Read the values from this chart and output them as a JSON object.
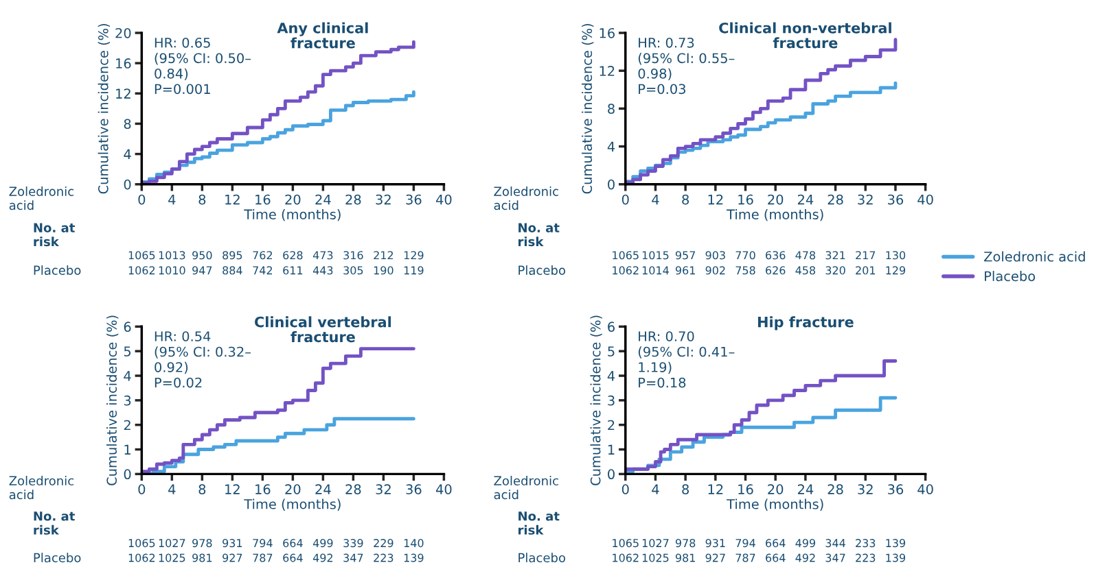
{
  "chart_data": [
    {
      "type": "step",
      "title": "Any clinical\nfracture",
      "xlabel": "Time (months)",
      "ylabel": "Cumulative incidence (%)",
      "xlim": [
        0,
        40
      ],
      "xticks": [
        0,
        4,
        8,
        12,
        16,
        20,
        24,
        28,
        32,
        36,
        40
      ],
      "ylim": [
        0,
        20
      ],
      "yticks": [
        0,
        4,
        8,
        12,
        16,
        20
      ],
      "grid": false,
      "legend": false,
      "annotations": [
        "HR: 0.65\n(95% CI: 0.50–\n0.84)\nP=0.001",
        "Zoledronic\nacid",
        "No. at\nrisk",
        "1065 1013 950 895 762 628 473 316 212 129",
        "Placebo",
        "1062 1010 947 884 742 611 443 305 190 119"
      ],
      "series": [
        {
          "color": "#4aa3df",
          "x": [
            0,
            1,
            2,
            3,
            4,
            5,
            6,
            7,
            8,
            9,
            10,
            12,
            14,
            16,
            17,
            18,
            19,
            20,
            22,
            24,
            25,
            27,
            28,
            30,
            33,
            35,
            36
          ],
          "values": [
            0.3,
            0.7,
            1.3,
            1.6,
            2.0,
            2.5,
            2.9,
            3.4,
            3.6,
            4.1,
            4.5,
            5.2,
            5.5,
            6.0,
            6.3,
            6.8,
            7.2,
            7.7,
            7.9,
            8.4,
            9.8,
            10.4,
            10.8,
            11.0,
            11.2,
            11.7,
            12.2
          ]
        },
        {
          "color": "#7352c4",
          "x": [
            0,
            1,
            2,
            3,
            4,
            5,
            6,
            7,
            8,
            9,
            10,
            12,
            14,
            16,
            17,
            18,
            19,
            21,
            22,
            23,
            24,
            25,
            27,
            28,
            29,
            31,
            33,
            34,
            36
          ],
          "values": [
            0.2,
            0.4,
            0.9,
            1.4,
            2.0,
            3.0,
            4.0,
            4.6,
            5.0,
            5.5,
            6.0,
            6.7,
            7.5,
            8.5,
            9.2,
            10.0,
            11.0,
            11.5,
            12.2,
            13.0,
            14.5,
            15.0,
            15.5,
            16.0,
            17.0,
            17.5,
            17.8,
            18.1,
            18.8
          ]
        }
      ]
    },
    {
      "type": "step",
      "title": "Clinical non-vertebral\nfracture",
      "xlabel": "Time (months)",
      "ylabel": "Cumulative incidence (%)",
      "xlim": [
        0,
        40
      ],
      "xticks": [
        0,
        4,
        8,
        12,
        16,
        20,
        24,
        28,
        32,
        36,
        40
      ],
      "ylim": [
        0,
        16
      ],
      "yticks": [
        0,
        4,
        8,
        12,
        16
      ],
      "grid": false,
      "legend": "right",
      "annotations": [
        "HR: 0.73\n(95% CI: 0.55–\n0.98)\nP=0.03",
        "Zoledronic\nacid",
        "No. at\nrisk",
        "1065 1015 957 903 770 636 478 321 217 130",
        "Placebo",
        "1062 1014 961 902 758 626 458 320 201 129"
      ],
      "series": [
        {
          "name": "Zoledronic acid",
          "color": "#4aa3df",
          "x": [
            0,
            1,
            2,
            3,
            4,
            5,
            6,
            7,
            8,
            9,
            10,
            11,
            13,
            14,
            15,
            16,
            18,
            19,
            20,
            22,
            24,
            25,
            27,
            28,
            30,
            34,
            36
          ],
          "values": [
            0.3,
            0.8,
            1.4,
            1.7,
            2.0,
            2.2,
            2.8,
            3.4,
            3.6,
            3.8,
            4.1,
            4.5,
            4.7,
            5.0,
            5.2,
            5.8,
            6.1,
            6.5,
            6.8,
            7.1,
            7.5,
            8.5,
            8.8,
            9.3,
            9.7,
            10.2,
            10.7
          ]
        },
        {
          "name": "Placebo",
          "color": "#7352c4",
          "x": [
            0,
            1,
            2,
            3,
            4,
            5,
            6,
            7,
            8,
            9,
            10,
            12,
            13,
            14,
            15,
            16,
            17,
            18,
            19,
            21,
            22,
            24,
            26,
            27,
            28,
            30,
            32,
            34,
            36
          ],
          "values": [
            0.2,
            0.5,
            1.0,
            1.4,
            1.9,
            2.6,
            3.0,
            3.8,
            4.0,
            4.3,
            4.7,
            5.0,
            5.4,
            5.9,
            6.4,
            6.9,
            7.6,
            8.0,
            8.8,
            9.1,
            10.0,
            11.0,
            11.7,
            12.1,
            12.5,
            13.1,
            13.5,
            14.2,
            15.3
          ]
        }
      ]
    },
    {
      "type": "step",
      "title": "Clinical vertebral\nfracture",
      "xlabel": "Time (months)",
      "ylabel": "Cumulative incidence (%)",
      "xlim": [
        0,
        40
      ],
      "xticks": [
        0,
        4,
        8,
        12,
        16,
        20,
        24,
        28,
        32,
        36,
        40
      ],
      "ylim": [
        0,
        6
      ],
      "yticks": [
        0,
        1,
        2,
        3,
        4,
        5,
        6
      ],
      "grid": false,
      "legend": false,
      "annotations": [
        "HR: 0.54\n(95% CI: 0.32–\n0.92)\nP=0.02",
        "Zoledronic\nacid",
        "No. at\nrisk",
        "1065 1027 978 931 794 664 499 339 229 140",
        "Placebo",
        "1062 1025 981 927 787 664 492 347 223 139"
      ],
      "series": [
        {
          "color": "#4aa3df",
          "x": [
            0,
            1.5,
            3,
            4.5,
            5.5,
            7.5,
            9.5,
            11,
            12.5,
            18,
            19,
            21.5,
            24.5,
            25.5,
            36
          ],
          "values": [
            0.0,
            0.1,
            0.3,
            0.5,
            0.8,
            1.0,
            1.1,
            1.2,
            1.35,
            1.5,
            1.65,
            1.8,
            2.0,
            2.25,
            2.25
          ]
        },
        {
          "color": "#7352c4",
          "x": [
            0,
            1,
            2,
            3,
            4,
            5,
            5.5,
            7,
            8,
            9,
            10,
            11,
            13,
            15,
            18,
            19,
            20,
            22,
            23,
            24,
            25,
            27,
            29,
            36
          ],
          "values": [
            0.1,
            0.2,
            0.4,
            0.45,
            0.55,
            0.65,
            1.2,
            1.4,
            1.6,
            1.8,
            2.0,
            2.2,
            2.3,
            2.5,
            2.6,
            2.9,
            3.0,
            3.4,
            3.7,
            4.3,
            4.5,
            4.8,
            5.1,
            5.1
          ]
        }
      ]
    },
    {
      "type": "step",
      "title": "Hip fracture",
      "xlabel": "Time (months)",
      "ylabel": "Cumulative incidence (%)",
      "xlim": [
        0,
        40
      ],
      "xticks": [
        0,
        4,
        8,
        12,
        16,
        20,
        24,
        28,
        32,
        36,
        40
      ],
      "ylim": [
        0,
        6
      ],
      "yticks": [
        0,
        1,
        2,
        3,
        4,
        5,
        6
      ],
      "grid": false,
      "legend": false,
      "annotations": [
        "HR: 0.70\n(95% CI: 0.41–\n1.19)\nP=0.18",
        "Zoledronic\nacid",
        "No. at\nrisk",
        "1065 1027 978 931 794 664 499 344 233 139",
        "Placebo",
        "1062 1025 981 927 787 664 492 347 223 139"
      ],
      "series": [
        {
          "color": "#4aa3df",
          "x": [
            0,
            1,
            3,
            4.5,
            6,
            7.5,
            9,
            10.5,
            13,
            14,
            15.5,
            22.5,
            25,
            28,
            34,
            36
          ],
          "values": [
            0.1,
            0.2,
            0.35,
            0.6,
            0.9,
            1.1,
            1.3,
            1.5,
            1.6,
            1.7,
            1.9,
            2.1,
            2.3,
            2.6,
            3.1,
            3.1
          ]
        },
        {
          "color": "#7352c4",
          "x": [
            0,
            3,
            4,
            4.7,
            5.2,
            6,
            7,
            9.5,
            14,
            14.5,
            15.5,
            16.5,
            17.5,
            19,
            21,
            22.5,
            24,
            26,
            28,
            34.5,
            36
          ],
          "values": [
            0.2,
            0.3,
            0.5,
            0.9,
            1.0,
            1.2,
            1.4,
            1.6,
            1.7,
            2.0,
            2.2,
            2.5,
            2.8,
            3.0,
            3.2,
            3.4,
            3.6,
            3.8,
            4.0,
            4.6,
            4.6
          ]
        }
      ]
    }
  ]
}
